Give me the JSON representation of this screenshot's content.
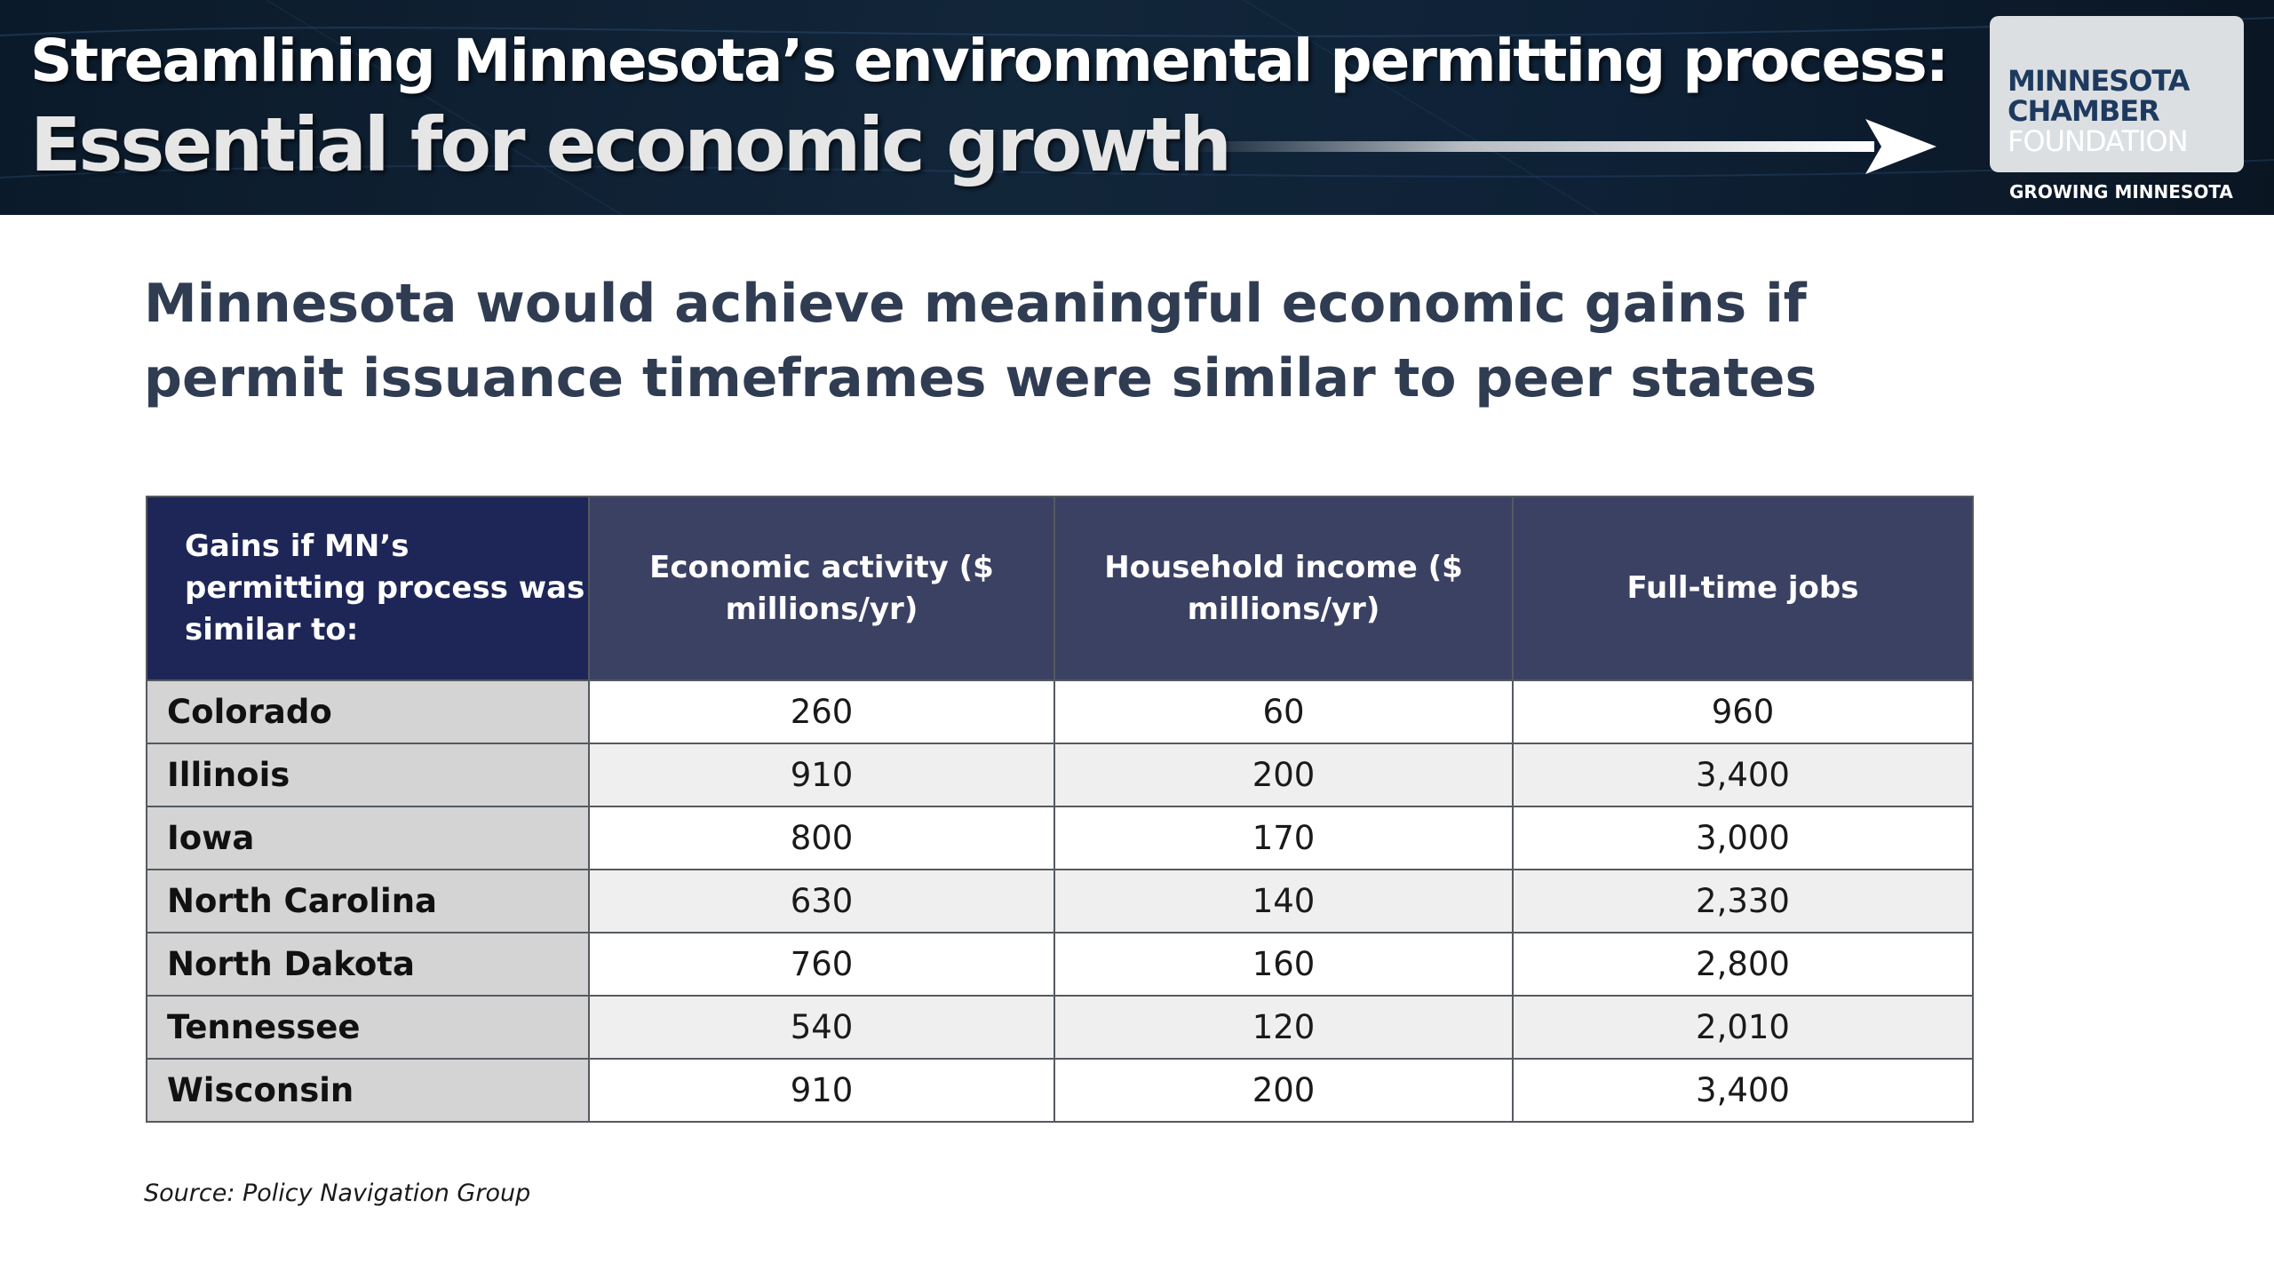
{
  "banner": {
    "title_line1": "Streamlining Minnesota’s environmental permitting process:",
    "title_line2": "Essential for economic growth",
    "logo_line1": "MINNESOTA",
    "logo_line2": "CHAMBER",
    "logo_line3": "FOUNDATION",
    "logo_tagline": "GROWING MINNESOTA"
  },
  "slide_title": "Minnesota would achieve meaningful economic gains if permit issuance timeframes were similar to peer states",
  "chart_data": {
    "type": "table",
    "columns": [
      "Gains if MN’s permitting process was similar to:",
      "Economic activity ($ millions/yr)",
      "Household income ($ millions/yr)",
      "Full-time jobs"
    ],
    "rows": [
      {
        "state": "Colorado",
        "economic_activity": "260",
        "household_income": "60",
        "jobs": "960"
      },
      {
        "state": "Illinois",
        "economic_activity": "910",
        "household_income": "200",
        "jobs": "3,400"
      },
      {
        "state": "Iowa",
        "economic_activity": "800",
        "household_income": "170",
        "jobs": "3,000"
      },
      {
        "state": "North Carolina",
        "economic_activity": "630",
        "household_income": "140",
        "jobs": "2,330"
      },
      {
        "state": "North Dakota",
        "economic_activity": "760",
        "household_income": "160",
        "jobs": "2,800"
      },
      {
        "state": "Tennessee",
        "economic_activity": "540",
        "household_income": "120",
        "jobs": "2,010"
      },
      {
        "state": "Wisconsin",
        "economic_activity": "910",
        "household_income": "200",
        "jobs": "3,400"
      }
    ]
  },
  "source": "Source: Policy Navigation Group",
  "colors": {
    "header_bg": "#3b4163",
    "corner_bg": "#1d2657",
    "state_cell_bg": "#d4d4d4",
    "title_color": "#2f3c52"
  }
}
